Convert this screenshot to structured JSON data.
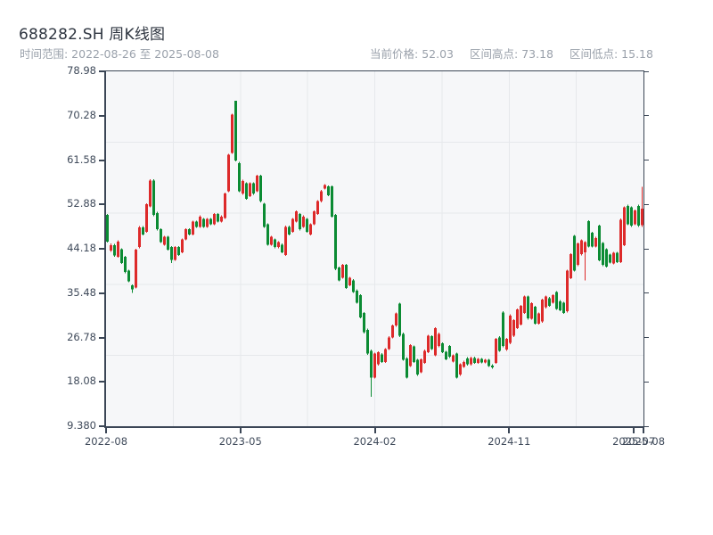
{
  "header": {
    "title": "688282.SH 周K线图",
    "subtitle": "时间范围: 2022-08-26 至 2025-08-08",
    "stats": [
      {
        "label": "当前价格:",
        "value": "52.03"
      },
      {
        "label": "区间高点:",
        "value": "73.18"
      },
      {
        "label": "区间低点:",
        "value": "15.18"
      }
    ]
  },
  "chart_data": {
    "type": "candlestick",
    "symbol": "688282.SH",
    "period": "weekly",
    "title": "688282.SH 周K线图",
    "date_range": {
      "start": "2022-08-26",
      "end": "2025-08-08"
    },
    "current_price": 52.03,
    "range_high": 73.18,
    "range_low": 15.18,
    "grid": "on",
    "y_axis": {
      "min": 9.38,
      "max": 78.98,
      "tick_labels": [
        "78.98",
        "70.28",
        "61.58",
        "52.88",
        "44.18",
        "35.48",
        "26.78",
        "18.08",
        "9.380"
      ]
    },
    "x_axis": {
      "ticks": [
        {
          "label": "2022-08",
          "pos": 0
        },
        {
          "label": "2023-05",
          "pos": 0.25
        },
        {
          "label": "2024-02",
          "pos": 0.5
        },
        {
          "label": "2024-11",
          "pos": 0.75
        },
        {
          "label": "2025-07",
          "pos": 0.982
        },
        {
          "label": "2025-08",
          "pos": 1
        }
      ]
    },
    "colors": {
      "up": "#dd2a2a",
      "down": "#0b8b33"
    },
    "candles_format": "[open, high, low, close] — red = up week, green = down week",
    "candles": [
      [
        50.8,
        51.0,
        45.4,
        45.6
      ],
      [
        43.8,
        45.2,
        43.6,
        44.9
      ],
      [
        44.9,
        45.1,
        42.6,
        42.9
      ],
      [
        42.6,
        45.8,
        42.4,
        45.6
      ],
      [
        44.1,
        44.3,
        41.2,
        41.4
      ],
      [
        42.6,
        42.8,
        39.4,
        39.6
      ],
      [
        39.9,
        40.1,
        37.6,
        37.8
      ],
      [
        37.0,
        37.2,
        35.5,
        36.2
      ],
      [
        36.6,
        44.2,
        36.4,
        44.0
      ],
      [
        44.5,
        48.6,
        44.3,
        48.4
      ],
      [
        48.4,
        48.6,
        46.8,
        47.0
      ],
      [
        47.5,
        53.1,
        47.3,
        52.9
      ],
      [
        52.5,
        57.8,
        52.3,
        57.6
      ],
      [
        57.6,
        57.8,
        50.6,
        50.8
      ],
      [
        51.2,
        51.4,
        47.8,
        48.0
      ],
      [
        48.0,
        48.2,
        45.3,
        45.5
      ],
      [
        45.0,
        46.7,
        44.8,
        46.5
      ],
      [
        46.5,
        46.7,
        43.8,
        44.0
      ],
      [
        44.5,
        44.7,
        41.4,
        42.0
      ],
      [
        42.0,
        44.7,
        41.8,
        44.5
      ],
      [
        44.5,
        44.7,
        42.8,
        43.0
      ],
      [
        43.5,
        46.2,
        43.3,
        46.0
      ],
      [
        46.0,
        48.2,
        45.8,
        48.0
      ],
      [
        48.0,
        48.2,
        46.8,
        47.0
      ],
      [
        47.0,
        49.7,
        46.8,
        49.5
      ],
      [
        49.5,
        49.7,
        48.3,
        48.5
      ],
      [
        48.5,
        50.7,
        48.3,
        50.5
      ],
      [
        50.0,
        50.2,
        48.3,
        48.5
      ],
      [
        48.5,
        50.2,
        48.3,
        50.0
      ],
      [
        50.0,
        50.2,
        48.8,
        49.0
      ],
      [
        49.0,
        51.2,
        48.8,
        51.0
      ],
      [
        51.0,
        51.2,
        49.3,
        49.5
      ],
      [
        49.5,
        50.7,
        49.3,
        50.5
      ],
      [
        50.2,
        55.2,
        50.0,
        55.0
      ],
      [
        55.5,
        62.8,
        55.3,
        62.6
      ],
      [
        63.0,
        70.7,
        62.8,
        70.5
      ],
      [
        73.18,
        73.18,
        61.3,
        61.5
      ],
      [
        61.0,
        61.2,
        55.3,
        55.5
      ],
      [
        55.0,
        57.7,
        54.8,
        57.5
      ],
      [
        57.0,
        57.2,
        53.8,
        54.0
      ],
      [
        54.5,
        57.2,
        54.3,
        57.0
      ],
      [
        57.0,
        57.2,
        54.8,
        55.0
      ],
      [
        55.5,
        58.7,
        55.3,
        58.5
      ],
      [
        58.5,
        58.7,
        53.3,
        53.5
      ],
      [
        53.0,
        53.2,
        48.3,
        48.5
      ],
      [
        49.0,
        49.2,
        44.8,
        45.0
      ],
      [
        45.0,
        46.7,
        44.8,
        46.5
      ],
      [
        46.0,
        46.2,
        44.3,
        44.5
      ],
      [
        44.5,
        45.7,
        44.3,
        45.5
      ],
      [
        45.0,
        45.2,
        43.3,
        43.5
      ],
      [
        43.0,
        48.7,
        42.8,
        48.5
      ],
      [
        48.5,
        48.7,
        46.8,
        47.0
      ],
      [
        47.5,
        50.2,
        47.3,
        50.0
      ],
      [
        49.5,
        51.7,
        49.3,
        51.5
      ],
      [
        51.0,
        51.2,
        47.8,
        48.0
      ],
      [
        48.5,
        50.7,
        48.3,
        50.5
      ],
      [
        50.0,
        50.2,
        47.3,
        47.5
      ],
      [
        47.0,
        49.2,
        46.8,
        49.0
      ],
      [
        49.0,
        51.7,
        48.8,
        51.5
      ],
      [
        51.0,
        53.7,
        50.8,
        53.5
      ],
      [
        53.5,
        55.7,
        53.3,
        55.5
      ],
      [
        56.0,
        56.9,
        55.8,
        56.7
      ],
      [
        56.4,
        56.6,
        54.5,
        54.7
      ],
      [
        56.4,
        56.6,
        50.3,
        50.5
      ],
      [
        50.8,
        51.0,
        40.0,
        40.2
      ],
      [
        40.5,
        40.7,
        37.8,
        38.0
      ],
      [
        38.5,
        41.2,
        38.3,
        41.0
      ],
      [
        41.0,
        41.2,
        36.3,
        36.5
      ],
      [
        37.0,
        38.7,
        36.8,
        38.5
      ],
      [
        38.0,
        38.2,
        35.5,
        35.7
      ],
      [
        36.0,
        36.2,
        33.4,
        33.6
      ],
      [
        35.1,
        35.3,
        30.5,
        30.7
      ],
      [
        31.6,
        31.8,
        27.6,
        27.8
      ],
      [
        28.3,
        28.5,
        23.4,
        23.6
      ],
      [
        24.2,
        24.4,
        15.18,
        18.9
      ],
      [
        18.9,
        23.8,
        18.7,
        23.6
      ],
      [
        21.5,
        24.1,
        21.3,
        23.9
      ],
      [
        23.5,
        23.7,
        21.8,
        22.0
      ],
      [
        22.0,
        24.7,
        21.8,
        24.5
      ],
      [
        24.5,
        27.0,
        24.3,
        26.8
      ],
      [
        26.8,
        29.3,
        26.6,
        29.1
      ],
      [
        29.1,
        31.7,
        28.9,
        31.5
      ],
      [
        33.4,
        33.6,
        26.9,
        27.1
      ],
      [
        27.5,
        27.7,
        22.2,
        22.4
      ],
      [
        22.7,
        22.9,
        18.7,
        18.9
      ],
      [
        21.2,
        25.5,
        21.0,
        25.3
      ],
      [
        25.0,
        25.2,
        21.8,
        22.0
      ],
      [
        22.4,
        22.6,
        19.3,
        19.5
      ],
      [
        20.0,
        22.7,
        19.8,
        22.5
      ],
      [
        21.8,
        24.4,
        21.6,
        24.2
      ],
      [
        23.9,
        27.3,
        23.7,
        27.1
      ],
      [
        27.0,
        27.2,
        24.3,
        24.5
      ],
      [
        23.3,
        28.8,
        23.1,
        28.6
      ],
      [
        25.1,
        27.7,
        24.9,
        27.5
      ],
      [
        25.6,
        25.8,
        23.7,
        23.9
      ],
      [
        24.0,
        24.2,
        22.3,
        22.5
      ],
      [
        25.1,
        25.3,
        22.8,
        23.0
      ],
      [
        22.1,
        23.5,
        21.9,
        23.3
      ],
      [
        23.6,
        23.8,
        18.7,
        18.9
      ],
      [
        19.5,
        21.7,
        19.3,
        21.5
      ],
      [
        21.0,
        22.2,
        20.8,
        22.0
      ],
      [
        22.7,
        22.9,
        21.3,
        21.5
      ],
      [
        21.5,
        23.0,
        21.3,
        22.8
      ],
      [
        22.8,
        23.0,
        21.6,
        21.8
      ],
      [
        21.8,
        22.8,
        21.6,
        22.6
      ],
      [
        22.6,
        22.8,
        21.7,
        21.9
      ],
      [
        21.9,
        22.6,
        21.7,
        22.4
      ],
      [
        22.4,
        22.6,
        21.0,
        21.2
      ],
      [
        21.3,
        21.5,
        20.7,
        20.9
      ],
      [
        21.8,
        26.7,
        21.6,
        26.5
      ],
      [
        26.8,
        27.0,
        24.0,
        24.2
      ],
      [
        31.7,
        31.9,
        24.9,
        25.1
      ],
      [
        24.4,
        26.7,
        24.2,
        26.5
      ],
      [
        25.7,
        31.3,
        25.5,
        31.1
      ],
      [
        27.1,
        30.4,
        26.9,
        30.2
      ],
      [
        28.6,
        32.5,
        28.4,
        32.3
      ],
      [
        29.3,
        33.2,
        29.1,
        33.0
      ],
      [
        31.6,
        35.0,
        31.4,
        34.8
      ],
      [
        34.8,
        35.0,
        30.3,
        30.5
      ],
      [
        30.5,
        33.7,
        30.3,
        33.5
      ],
      [
        32.8,
        33.0,
        29.3,
        29.5
      ],
      [
        29.5,
        31.7,
        29.3,
        31.5
      ],
      [
        29.9,
        34.4,
        29.7,
        34.2
      ],
      [
        32.7,
        35.0,
        32.5,
        34.8
      ],
      [
        34.5,
        34.7,
        32.8,
        33.0
      ],
      [
        33.6,
        35.3,
        33.4,
        35.1
      ],
      [
        35.7,
        35.9,
        32.2,
        32.4
      ],
      [
        33.9,
        34.1,
        31.9,
        32.1
      ],
      [
        33.6,
        33.8,
        31.4,
        31.6
      ],
      [
        31.9,
        40.1,
        31.7,
        39.9
      ],
      [
        38.4,
        43.3,
        38.2,
        43.1
      ],
      [
        46.7,
        46.9,
        39.7,
        39.9
      ],
      [
        41.0,
        45.4,
        40.8,
        45.2
      ],
      [
        43.1,
        46.0,
        42.9,
        45.8
      ],
      [
        43.5,
        45.7,
        38.0,
        45.5
      ],
      [
        49.6,
        49.8,
        44.4,
        44.6
      ],
      [
        47.3,
        47.5,
        44.4,
        44.6
      ],
      [
        44.6,
        46.5,
        44.4,
        46.3
      ],
      [
        48.7,
        48.9,
        41.7,
        41.9
      ],
      [
        45.3,
        45.5,
        40.8,
        41.0
      ],
      [
        44.1,
        44.3,
        40.5,
        40.7
      ],
      [
        43.0,
        43.2,
        41.3,
        41.5
      ],
      [
        41.3,
        43.6,
        41.1,
        43.4
      ],
      [
        43.4,
        43.6,
        41.4,
        41.6
      ],
      [
        41.6,
        50.1,
        41.4,
        49.9
      ],
      [
        44.9,
        52.5,
        44.7,
        52.3
      ],
      [
        52.6,
        52.8,
        48.8,
        49.0
      ],
      [
        52.3,
        52.5,
        48.5,
        48.7
      ],
      [
        49.0,
        51.9,
        48.8,
        51.7
      ],
      [
        52.6,
        52.8,
        48.5,
        48.7
      ],
      [
        48.8,
        56.3,
        48.5,
        52.03
      ]
    ]
  }
}
